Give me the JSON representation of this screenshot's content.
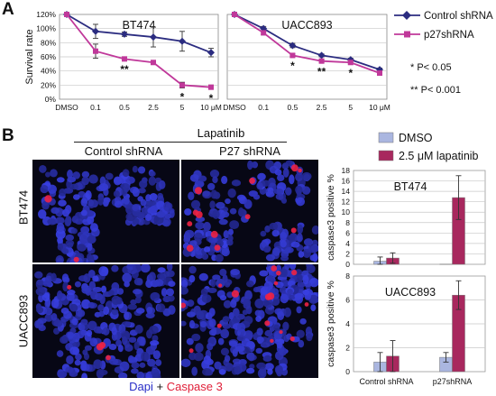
{
  "panel_a_label": "A",
  "panel_b_label": "B",
  "colors": {
    "control": "#2b2c80",
    "p27": "#c0389a",
    "dmso_bar": "#aab6e0",
    "lapatinib_bar": "#a8285e",
    "nucleus_blue": "#3a3fd0",
    "caspase_red": "#ee2244"
  },
  "legend_a": {
    "control": "Control shRNA",
    "p27": "p27shRNA",
    "sig1": "*  P< 0.05",
    "sig2": "** P< 0.001"
  },
  "legend_b": {
    "dmso": "DMSO",
    "lapatinib": "2.5  μM lapatinib"
  },
  "micrograph": {
    "treatment": "Lapatinib",
    "col1": "Control shRNA",
    "col2": "P27 shRNA",
    "row1": "BT474",
    "row2": "UACC893",
    "caption_dapi": "Dapi",
    "caption_plus": " + ",
    "caption_casp": "Caspase 3"
  },
  "chart_data": [
    {
      "type": "line",
      "title": "BT474",
      "ylabel": "Survival rate",
      "x": [
        "DMSO",
        "0.1",
        "0.5",
        "2.5",
        "5",
        "10 μM"
      ],
      "ylim": [
        0,
        120
      ],
      "yticks": [
        "0%",
        "20%",
        "40%",
        "60%",
        "80%",
        "100%",
        "120%"
      ],
      "series": [
        {
          "name": "Control shRNA",
          "values": [
            120,
            96,
            92,
            88,
            82,
            66
          ],
          "errors": [
            0,
            10,
            3,
            14,
            14,
            6
          ]
        },
        {
          "name": "p27shRNA",
          "values": [
            120,
            68,
            57,
            52,
            20,
            17
          ],
          "errors": [
            0,
            10,
            2,
            2,
            4,
            3
          ]
        }
      ],
      "annotations": [
        {
          "x": "0.5",
          "text": "**"
        },
        {
          "x": "5",
          "text": "*"
        },
        {
          "x": "10 μM",
          "text": "*"
        }
      ]
    },
    {
      "type": "line",
      "title": "UACC893",
      "x": [
        "DMSO",
        "0.1",
        "0.5",
        "2.5",
        "5",
        "10 μM"
      ],
      "ylim": [
        0,
        120
      ],
      "yticks": [
        "0%",
        "20%",
        "40%",
        "60%",
        "80%",
        "100%",
        "120%"
      ],
      "series": [
        {
          "name": "Control shRNA",
          "values": [
            120,
            100,
            76,
            62,
            56,
            42
          ],
          "errors": [
            0,
            3,
            3,
            2,
            2,
            2
          ]
        },
        {
          "name": "p27shRNA",
          "values": [
            120,
            94,
            62,
            54,
            52,
            37
          ],
          "errors": [
            0,
            3,
            2,
            2,
            2,
            2
          ]
        }
      ],
      "annotations": [
        {
          "x": "0.5",
          "text": "*"
        },
        {
          "x": "2.5",
          "text": "**"
        },
        {
          "x": "5",
          "text": "*"
        }
      ]
    },
    {
      "type": "bar",
      "title": "BT474",
      "ylabel": "caspase3 positive %",
      "categories": [
        "Control shRNA",
        "p27shRNA"
      ],
      "ylim": [
        0,
        18
      ],
      "yticks": [
        "0",
        "2",
        "4",
        "6",
        "8",
        "10",
        "12",
        "14",
        "16",
        "18"
      ],
      "series": [
        {
          "name": "DMSO",
          "values": [
            0.6,
            0.0
          ],
          "errors": [
            0.8,
            0
          ]
        },
        {
          "name": "2.5  μM lapatinib",
          "values": [
            1.2,
            12.8
          ],
          "errors": [
            1.0,
            4.2
          ]
        }
      ]
    },
    {
      "type": "bar",
      "title": "UACC893",
      "ylabel": "caspase3 positive %",
      "categories": [
        "Control shRNA",
        "p27shRNA"
      ],
      "ylim": [
        0,
        8
      ],
      "yticks": [
        "0",
        "2",
        "4",
        "6",
        "8"
      ],
      "series": [
        {
          "name": "DMSO",
          "values": [
            0.8,
            1.2
          ],
          "errors": [
            0.8,
            0.4
          ]
        },
        {
          "name": "2.5  μM lapatinib",
          "values": [
            1.3,
            6.4
          ],
          "errors": [
            1.3,
            1.2
          ]
        }
      ]
    }
  ]
}
